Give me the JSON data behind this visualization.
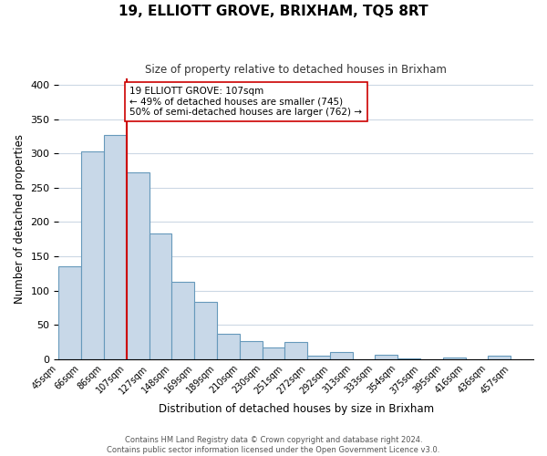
{
  "title": "19, ELLIOTT GROVE, BRIXHAM, TQ5 8RT",
  "subtitle": "Size of property relative to detached houses in Brixham",
  "xlabel": "Distribution of detached houses by size in Brixham",
  "ylabel": "Number of detached properties",
  "bar_labels": [
    "45sqm",
    "66sqm",
    "86sqm",
    "107sqm",
    "127sqm",
    "148sqm",
    "169sqm",
    "189sqm",
    "210sqm",
    "230sqm",
    "251sqm",
    "272sqm",
    "292sqm",
    "313sqm",
    "333sqm",
    "354sqm",
    "375sqm",
    "395sqm",
    "416sqm",
    "436sqm",
    "457sqm"
  ],
  "bar_values": [
    135,
    303,
    327,
    272,
    183,
    113,
    84,
    37,
    27,
    17,
    25,
    5,
    11,
    0,
    6,
    1,
    0,
    3,
    0,
    5
  ],
  "bar_color": "#c8d8e8",
  "bar_edge_color": "#6699bb",
  "vline_x": 3,
  "vline_color": "#cc0000",
  "annotation_title": "19 ELLIOTT GROVE: 107sqm",
  "annotation_line1": "← 49% of detached houses are smaller (745)",
  "annotation_line2": "50% of semi-detached houses are larger (762) →",
  "annotation_box_color": "#ffffff",
  "annotation_box_edge": "#cc0000",
  "footer_line1": "Contains HM Land Registry data © Crown copyright and database right 2024.",
  "footer_line2": "Contains public sector information licensed under the Open Government Licence v3.0.",
  "ylim": [
    0,
    410
  ],
  "yticks": [
    0,
    50,
    100,
    150,
    200,
    250,
    300,
    350,
    400
  ]
}
